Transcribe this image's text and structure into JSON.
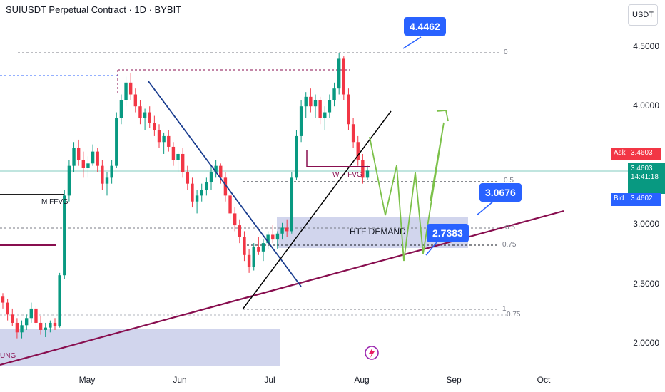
{
  "header": {
    "title": "SUIUSDT Perpetual Contract · 1D · BYBIT",
    "currency": "USDT"
  },
  "price_axis": [
    "4.5000",
    "4.0000",
    "3.0000",
    "2.5000",
    "2.0000"
  ],
  "date_axis": [
    "May",
    "Jun",
    "Jul",
    "Aug",
    "Sep",
    "Oct"
  ],
  "quote_tags": {
    "ask_label": "Ask",
    "ask_value": "3.4603",
    "last_value": "3.4603",
    "countdown": "14:41:18",
    "bid_label": "Bid",
    "bid_value": "3.4602"
  },
  "callouts": {
    "top": "4.4462",
    "mid": "3.0676",
    "low": "2.7383"
  },
  "annotations": {
    "htf_demand": "HTF DEMAND",
    "w_fvg": "W F FVG",
    "m_ffvg": "M FFVG",
    "ung": "UNG"
  },
  "fib_labels": [
    "0",
    "0.5",
    "0.5",
    "0.75",
    "1",
    "0.75"
  ],
  "colors": {
    "up": "#089981",
    "down": "#f23645",
    "trendline": "#880e4f",
    "down_line": "#1a3d8f",
    "demand_zone": "#c5cae9",
    "projection": "#7cc14a",
    "accent": "#2962ff"
  },
  "chart_data": {
    "type": "candlestick",
    "title": "SUIUSDT Perpetual Contract · 1D · BYBIT",
    "xlabel": "",
    "ylabel": "USDT",
    "ylim": [
      1.9,
      4.7
    ],
    "x_ticks": [
      "May",
      "Jun",
      "Jul",
      "Aug",
      "Sep",
      "Oct"
    ],
    "y_ticks": [
      4.5,
      4.0,
      3.0,
      2.5,
      2.0
    ],
    "grid": false,
    "current_price": 3.4603,
    "levels": [
      {
        "label": "4.4462",
        "value": 4.4462
      },
      {
        "label": "3.0676",
        "value": 3.0676
      },
      {
        "label": "2.7383",
        "value": 2.7383
      }
    ],
    "candles": [
      [
        2.4,
        2.43,
        2.3,
        2.35
      ],
      [
        2.35,
        2.38,
        2.2,
        2.25
      ],
      [
        2.25,
        2.3,
        2.15,
        2.18
      ],
      [
        2.18,
        2.22,
        2.05,
        2.1
      ],
      [
        2.1,
        2.2,
        2.05,
        2.16
      ],
      [
        2.16,
        2.25,
        2.12,
        2.22
      ],
      [
        2.22,
        2.35,
        2.18,
        2.3
      ],
      [
        2.3,
        2.32,
        2.15,
        2.18
      ],
      [
        2.18,
        2.24,
        2.08,
        2.12
      ],
      [
        2.12,
        2.18,
        2.06,
        2.14
      ],
      [
        2.14,
        2.2,
        2.1,
        2.18
      ],
      [
        2.18,
        2.22,
        2.12,
        2.15
      ],
      [
        2.15,
        2.6,
        2.14,
        2.58
      ],
      [
        2.58,
        3.3,
        2.55,
        3.25
      ],
      [
        3.25,
        3.55,
        3.2,
        3.5
      ],
      [
        3.5,
        3.7,
        3.45,
        3.65
      ],
      [
        3.65,
        3.72,
        3.5,
        3.55
      ],
      [
        3.55,
        3.62,
        3.4,
        3.48
      ],
      [
        3.48,
        3.58,
        3.4,
        3.52
      ],
      [
        3.52,
        3.68,
        3.5,
        3.62
      ],
      [
        3.62,
        3.65,
        3.45,
        3.5
      ],
      [
        3.5,
        3.55,
        3.3,
        3.35
      ],
      [
        3.35,
        3.45,
        3.25,
        3.4
      ],
      [
        3.4,
        3.55,
        3.35,
        3.5
      ],
      [
        3.5,
        3.95,
        3.48,
        3.9
      ],
      [
        3.9,
        4.1,
        3.85,
        4.05
      ],
      [
        4.05,
        4.25,
        4.0,
        4.2
      ],
      [
        4.2,
        4.28,
        4.05,
        4.1
      ],
      [
        4.1,
        4.15,
        3.95,
        4.0
      ],
      [
        4.0,
        4.05,
        3.85,
        3.9
      ],
      [
        3.9,
        3.98,
        3.8,
        3.95
      ],
      [
        3.95,
        4.0,
        3.82,
        3.86
      ],
      [
        3.86,
        3.92,
        3.75,
        3.8
      ],
      [
        3.8,
        3.85,
        3.65,
        3.7
      ],
      [
        3.7,
        3.78,
        3.6,
        3.75
      ],
      [
        3.75,
        3.8,
        3.62,
        3.66
      ],
      [
        3.66,
        3.7,
        3.5,
        3.55
      ],
      [
        3.55,
        3.62,
        3.45,
        3.6
      ],
      [
        3.6,
        3.65,
        3.4,
        3.45
      ],
      [
        3.45,
        3.5,
        3.3,
        3.35
      ],
      [
        3.35,
        3.4,
        3.15,
        3.2
      ],
      [
        3.2,
        3.3,
        3.1,
        3.25
      ],
      [
        3.25,
        3.35,
        3.2,
        3.3
      ],
      [
        3.3,
        3.4,
        3.25,
        3.36
      ],
      [
        3.36,
        3.5,
        3.3,
        3.45
      ],
      [
        3.45,
        3.55,
        3.4,
        3.5
      ],
      [
        3.5,
        3.52,
        3.35,
        3.4
      ],
      [
        3.4,
        3.45,
        3.2,
        3.25
      ],
      [
        3.25,
        3.3,
        3.05,
        3.1
      ],
      [
        3.1,
        3.15,
        2.95,
        3.0
      ],
      [
        3.0,
        3.05,
        2.85,
        2.9
      ],
      [
        2.9,
        2.95,
        2.7,
        2.75
      ],
      [
        2.75,
        2.8,
        2.6,
        2.65
      ],
      [
        2.65,
        2.85,
        2.62,
        2.82
      ],
      [
        2.82,
        2.9,
        2.75,
        2.78
      ],
      [
        2.78,
        2.88,
        2.7,
        2.85
      ],
      [
        2.85,
        2.95,
        2.8,
        2.92
      ],
      [
        2.92,
        3.0,
        2.85,
        2.88
      ],
      [
        2.88,
        2.95,
        2.8,
        2.93
      ],
      [
        2.93,
        3.02,
        2.88,
        2.98
      ],
      [
        2.98,
        3.05,
        2.9,
        2.95
      ],
      [
        2.95,
        3.45,
        2.93,
        3.4
      ],
      [
        3.4,
        3.8,
        3.38,
        3.75
      ],
      [
        3.75,
        4.05,
        3.7,
        4.0
      ],
      [
        4.0,
        4.12,
        3.9,
        4.08
      ],
      [
        4.08,
        4.15,
        3.95,
        4.0
      ],
      [
        4.0,
        4.1,
        3.9,
        4.05
      ],
      [
        4.05,
        4.08,
        3.85,
        3.9
      ],
      [
        3.9,
        4.0,
        3.8,
        3.95
      ],
      [
        3.95,
        4.1,
        3.9,
        4.05
      ],
      [
        4.05,
        4.2,
        4.0,
        4.15
      ],
      [
        4.15,
        4.45,
        4.1,
        4.4
      ],
      [
        4.4,
        4.42,
        4.05,
        4.1
      ],
      [
        4.1,
        4.15,
        3.8,
        3.85
      ],
      [
        3.85,
        3.9,
        3.65,
        3.7
      ],
      [
        3.7,
        3.75,
        3.5,
        3.55
      ],
      [
        3.55,
        3.6,
        3.35,
        3.4
      ],
      [
        3.4,
        3.5,
        3.38,
        3.46
      ]
    ]
  }
}
